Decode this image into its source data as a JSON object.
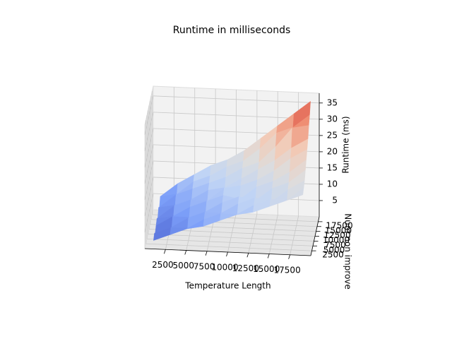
{
  "chart_data": {
    "type": "surface3d",
    "title": "Runtime in milliseconds",
    "x_label": "Temperature Length",
    "y_label": "Num non improve",
    "z_label": "Runtime (ms)",
    "colormap": "coolwarm",
    "x": [
      1000,
      3000,
      5000,
      7000,
      9000,
      11000,
      13000,
      15000,
      17000,
      19000
    ],
    "y": [
      1000,
      3000,
      5000,
      7000,
      9000,
      11000,
      13000,
      15000,
      17000,
      19000
    ],
    "z": [
      [
        2,
        4,
        6,
        7,
        9,
        11,
        12,
        14,
        16,
        18
      ],
      [
        3,
        5,
        5,
        8,
        10,
        10,
        13,
        15,
        15,
        19
      ],
      [
        2,
        4,
        7,
        9,
        9,
        12,
        14,
        13,
        17,
        20
      ],
      [
        3,
        6,
        6,
        8,
        11,
        13,
        12,
        16,
        18,
        22
      ],
      [
        4,
        5,
        8,
        10,
        12,
        11,
        15,
        17,
        20,
        24
      ],
      [
        3,
        7,
        9,
        9,
        13,
        14,
        16,
        19,
        23,
        26
      ],
      [
        5,
        6,
        8,
        11,
        12,
        15,
        18,
        21,
        25,
        28
      ],
      [
        4,
        8,
        10,
        12,
        14,
        17,
        19,
        24,
        30,
        31
      ],
      [
        6,
        7,
        11,
        13,
        16,
        18,
        22,
        27,
        29,
        33
      ],
      [
        5,
        9,
        12,
        15,
        17,
        20,
        24,
        28,
        32,
        36
      ]
    ],
    "xlim": [
      0,
      20000
    ],
    "ylim": [
      0,
      20000
    ],
    "zlim": [
      0,
      38
    ],
    "xticks": [
      2500,
      5000,
      7500,
      10000,
      12500,
      15000,
      17500
    ],
    "yticks": [
      2500,
      5000,
      7500,
      10000,
      12500,
      15000,
      17500
    ],
    "zticks": [
      5,
      10,
      15,
      20,
      25,
      30,
      35
    ],
    "grid": true
  }
}
